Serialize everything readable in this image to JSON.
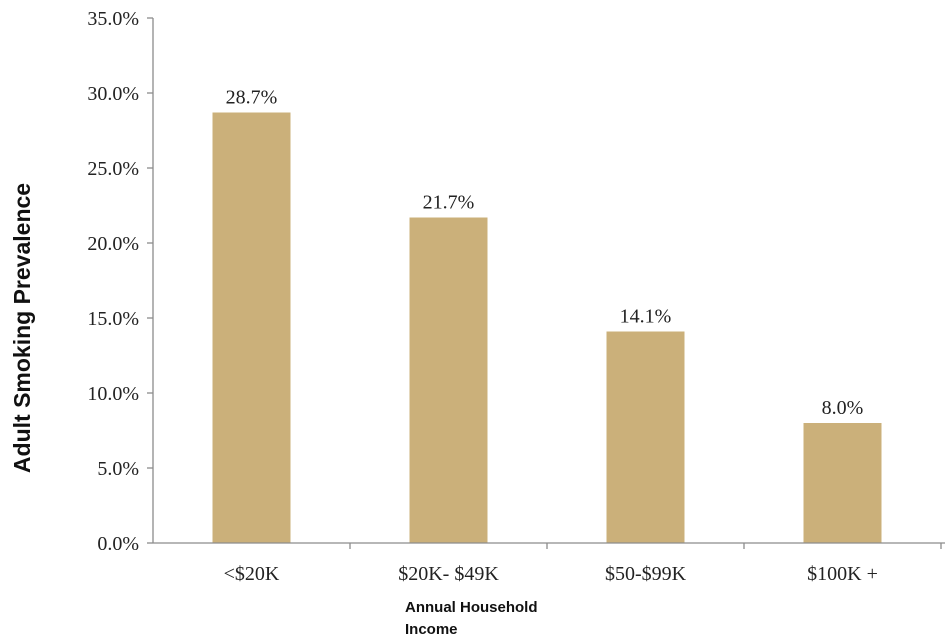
{
  "chart_data": {
    "type": "bar",
    "categories": [
      "<$20K",
      "$20K- $49K",
      "$50-$99K",
      "$100K +"
    ],
    "values": [
      28.7,
      21.7,
      14.1,
      8.0
    ],
    "data_labels": [
      "28.7%",
      "21.7%",
      "14.1%",
      "8.0%"
    ],
    "ylabel": "Adult Smoking Prevalence",
    "xlabel_lines": [
      "Annual Household",
      "Income"
    ],
    "ylim": [
      0,
      35
    ],
    "yticks": [
      0,
      5,
      10,
      15,
      20,
      25,
      30,
      35
    ],
    "ytick_labels": [
      "0.0%",
      "5.0%",
      "10.0%",
      "15.0%",
      "20.0%",
      "25.0%",
      "30.0%",
      "35.0%"
    ],
    "grid": false,
    "bar_color": "#cbb07a"
  }
}
